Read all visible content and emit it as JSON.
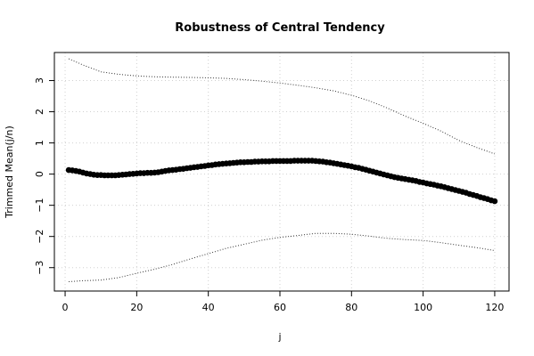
{
  "chart_data": {
    "type": "scatter",
    "title": "Robustness of Central Tendency",
    "xlabel": "j",
    "ylabel": "Trimmed Mean(j/n)",
    "xlim": [
      -3,
      124
    ],
    "ylim": [
      -3.75,
      3.9
    ],
    "xticks": [
      "0",
      "20",
      "40",
      "60",
      "80",
      "100",
      "120"
    ],
    "yticks": [
      "-3",
      "-2",
      "-1",
      "0",
      "1",
      "2",
      "3"
    ],
    "grid": true,
    "trimmed_mean": {
      "x": [
        1,
        2,
        3,
        4,
        5,
        6,
        7,
        8,
        9,
        10,
        11,
        12,
        13,
        14,
        15,
        16,
        17,
        18,
        19,
        20,
        21,
        22,
        23,
        24,
        25,
        26,
        27,
        28,
        29,
        30,
        31,
        32,
        33,
        34,
        35,
        36,
        37,
        38,
        39,
        40,
        41,
        42,
        43,
        44,
        45,
        46,
        47,
        48,
        49,
        50,
        51,
        52,
        53,
        54,
        55,
        56,
        57,
        58,
        59,
        60,
        61,
        62,
        63,
        64,
        65,
        66,
        67,
        68,
        69,
        70,
        71,
        72,
        73,
        74,
        75,
        76,
        77,
        78,
        79,
        80,
        81,
        82,
        83,
        84,
        85,
        86,
        87,
        88,
        89,
        90,
        91,
        92,
        93,
        94,
        95,
        96,
        97,
        98,
        99,
        100,
        101,
        102,
        103,
        104,
        105,
        106,
        107,
        108,
        109,
        110,
        111,
        112,
        113,
        114,
        115,
        116,
        117,
        118,
        119,
        120
      ],
      "y": [
        0.13,
        0.12,
        0.1,
        0.08,
        0.05,
        0.02,
        0.0,
        -0.02,
        -0.03,
        -0.03,
        -0.04,
        -0.04,
        -0.04,
        -0.04,
        -0.03,
        -0.02,
        -0.01,
        0.0,
        0.01,
        0.02,
        0.03,
        0.03,
        0.04,
        0.04,
        0.05,
        0.06,
        0.08,
        0.1,
        0.12,
        0.13,
        0.14,
        0.16,
        0.17,
        0.19,
        0.2,
        0.22,
        0.23,
        0.25,
        0.26,
        0.28,
        0.29,
        0.31,
        0.32,
        0.33,
        0.34,
        0.35,
        0.36,
        0.37,
        0.38,
        0.38,
        0.39,
        0.39,
        0.4,
        0.4,
        0.41,
        0.41,
        0.41,
        0.42,
        0.42,
        0.42,
        0.42,
        0.42,
        0.42,
        0.43,
        0.43,
        0.43,
        0.43,
        0.43,
        0.43,
        0.42,
        0.41,
        0.4,
        0.38,
        0.37,
        0.35,
        0.33,
        0.31,
        0.29,
        0.27,
        0.25,
        0.22,
        0.2,
        0.17,
        0.14,
        0.11,
        0.08,
        0.05,
        0.02,
        -0.01,
        -0.04,
        -0.07,
        -0.1,
        -0.12,
        -0.14,
        -0.16,
        -0.18,
        -0.2,
        -0.22,
        -0.25,
        -0.27,
        -0.3,
        -0.32,
        -0.34,
        -0.37,
        -0.39,
        -0.42,
        -0.45,
        -0.48,
        -0.51,
        -0.54,
        -0.57,
        -0.6,
        -0.64,
        -0.67,
        -0.7,
        -0.74,
        -0.77,
        -0.8,
        -0.84,
        -0.87
      ]
    },
    "upper_bound": {
      "x": [
        1,
        5,
        10,
        15,
        20,
        25,
        30,
        35,
        40,
        45,
        50,
        55,
        60,
        65,
        70,
        75,
        80,
        85,
        90,
        95,
        100,
        105,
        110,
        115,
        120
      ],
      "y": [
        3.7,
        3.5,
        3.28,
        3.2,
        3.15,
        3.12,
        3.11,
        3.1,
        3.09,
        3.07,
        3.03,
        2.98,
        2.92,
        2.85,
        2.77,
        2.67,
        2.53,
        2.35,
        2.12,
        1.86,
        1.63,
        1.38,
        1.08,
        0.85,
        0.65
      ]
    },
    "lower_bound": {
      "x": [
        1,
        5,
        10,
        15,
        20,
        25,
        30,
        35,
        40,
        45,
        50,
        55,
        60,
        65,
        70,
        75,
        80,
        85,
        90,
        95,
        100,
        105,
        110,
        115,
        120
      ],
      "y": [
        -3.45,
        -3.42,
        -3.4,
        -3.32,
        -3.18,
        -3.05,
        -2.9,
        -2.72,
        -2.55,
        -2.38,
        -2.25,
        -2.12,
        -2.03,
        -1.97,
        -1.9,
        -1.9,
        -1.93,
        -1.99,
        -2.06,
        -2.1,
        -2.13,
        -2.2,
        -2.28,
        -2.36,
        -2.45
      ]
    }
  }
}
